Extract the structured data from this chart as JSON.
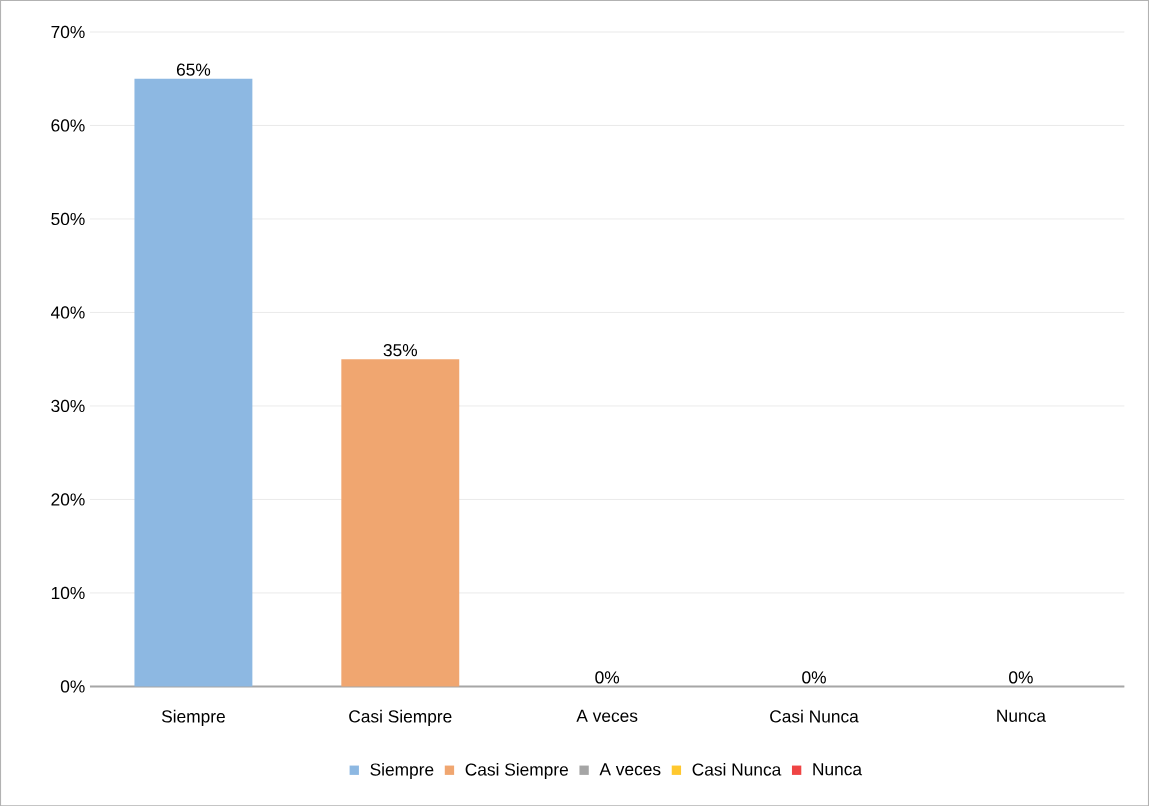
{
  "chart_data": {
    "type": "bar",
    "categories": [
      "Siempre",
      "Casi Siempre",
      "A veces",
      "Casi Nunca",
      "Nunca"
    ],
    "series": [
      {
        "name": "Siempre",
        "color": "#8db8e2",
        "values": [
          65,
          null,
          null,
          null,
          null
        ],
        "value_labels": [
          "65%",
          null,
          null,
          null,
          null
        ]
      },
      {
        "name": "Casi Siempre",
        "color": "#f0a670",
        "values": [
          null,
          35,
          null,
          null,
          null
        ],
        "value_labels": [
          null,
          "35%",
          null,
          null,
          null
        ]
      },
      {
        "name": "A veces",
        "color": "#a5a5a5",
        "values": [
          null,
          null,
          0,
          null,
          null
        ],
        "value_labels": [
          null,
          null,
          "0%",
          null,
          null
        ]
      },
      {
        "name": "Casi Nunca",
        "color": "#ffc82e",
        "values": [
          null,
          null,
          null,
          0,
          null
        ],
        "value_labels": [
          null,
          null,
          null,
          "0%",
          null
        ]
      },
      {
        "name": "Nunca",
        "color": "#ef4444",
        "values": [
          null,
          null,
          null,
          null,
          0
        ],
        "value_labels": [
          null,
          null,
          null,
          null,
          "0%"
        ]
      }
    ],
    "ylim": [
      0,
      70
    ],
    "yticks": [
      {
        "value": 0,
        "label": "0%"
      },
      {
        "value": 10,
        "label": "10%"
      },
      {
        "value": 20,
        "label": "20%"
      },
      {
        "value": 30,
        "label": "30%"
      },
      {
        "value": 40,
        "label": "40%"
      },
      {
        "value": 50,
        "label": "50%"
      },
      {
        "value": 60,
        "label": "60%"
      },
      {
        "value": 70,
        "label": "70%"
      }
    ],
    "grid": "y",
    "legend": "bottom"
  }
}
